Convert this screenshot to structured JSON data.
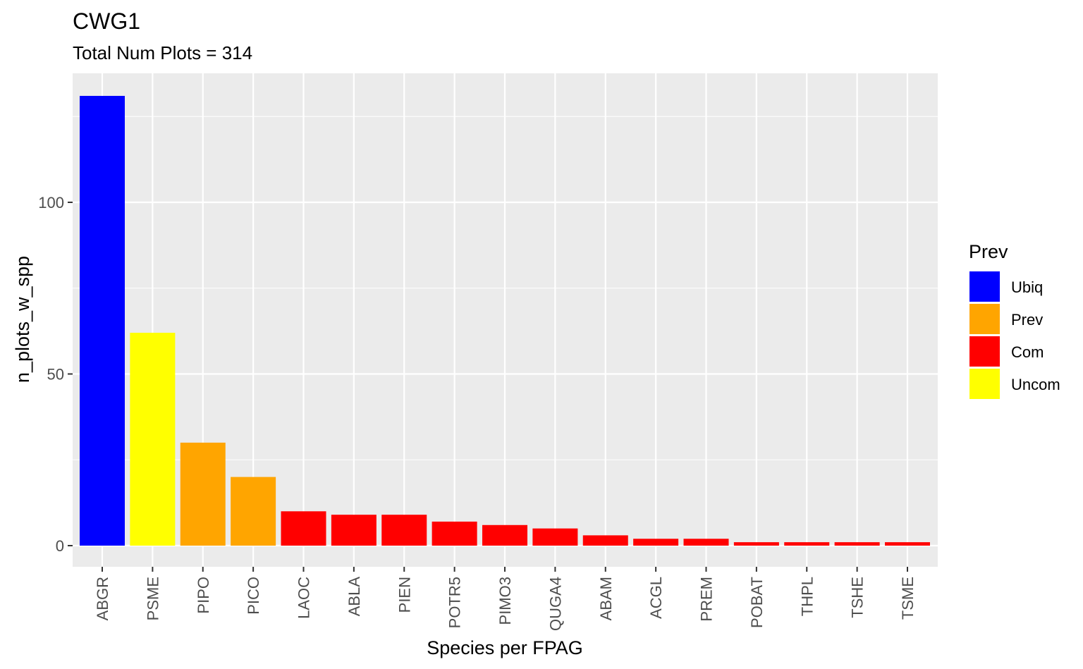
{
  "chart_data": {
    "type": "bar",
    "title": "CWG1",
    "subtitle": "Total Num Plots = 314",
    "xlabel": "Species per FPAG",
    "ylabel": "n_plots_w_spp",
    "ylim": [
      -6,
      131
    ],
    "yticks": [
      0,
      50,
      100
    ],
    "grid": true,
    "categories": [
      "ABGR",
      "PSME",
      "PIPO",
      "PICO",
      "LAOC",
      "ABLA",
      "PIEN",
      "POTR5",
      "PIMO3",
      "QUGA4",
      "ABAM",
      "ACGL",
      "PREM",
      "POBAT",
      "THPL",
      "TSHE",
      "TSME"
    ],
    "values": [
      131,
      62,
      30,
      20,
      10,
      9,
      9,
      7,
      6,
      5,
      3,
      2,
      2,
      1,
      1,
      1,
      1
    ],
    "groups": [
      "Ubiq",
      "Uncom",
      "Prev",
      "Prev",
      "Com",
      "Com",
      "Com",
      "Com",
      "Com",
      "Com",
      "Com",
      "Com",
      "Com",
      "Com",
      "Com",
      "Com",
      "Com"
    ],
    "legend": {
      "title": "Prev",
      "position": "right",
      "entries": [
        {
          "name": "Ubiq",
          "color": "#0000ff"
        },
        {
          "name": "Prev",
          "color": "#ffa500"
        },
        {
          "name": "Com",
          "color": "#ff0000"
        },
        {
          "name": "Uncom",
          "color": "#ffff00"
        }
      ]
    },
    "colors": {
      "panel": "#ebebeb",
      "grid": "#ffffff"
    }
  }
}
